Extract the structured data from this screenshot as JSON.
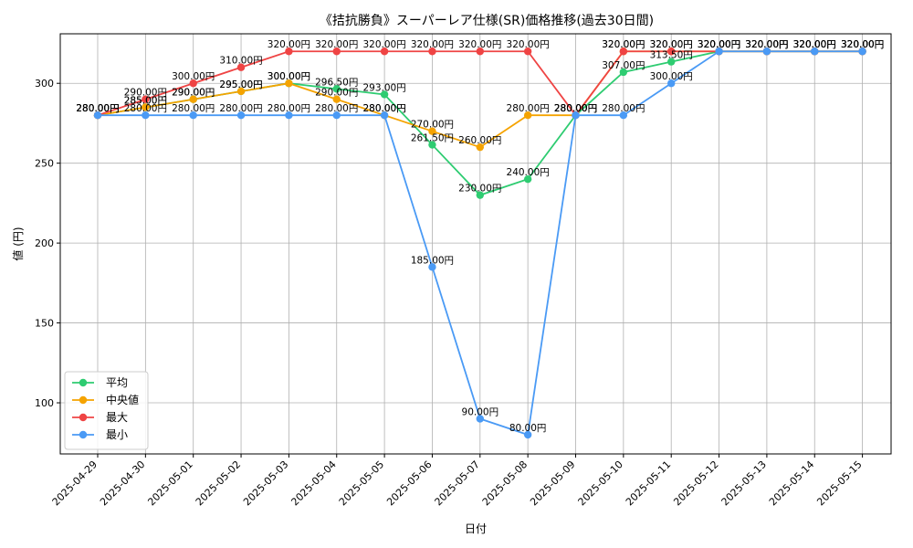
{
  "chart_data": {
    "type": "line",
    "title": "《拮抗勝負》スーパーレア仕様(SR)価格推移(過去30日間)",
    "xlabel": "日付",
    "ylabel": "値 (円)",
    "ylim": [
      68,
      331
    ],
    "yticks": [
      100,
      150,
      200,
      250,
      300
    ],
    "grid": true,
    "legend_position": "lower-left",
    "label_suffix": "円",
    "categories": [
      "2025-04-29",
      "2025-04-30",
      "2025-05-01",
      "2025-05-02",
      "2025-05-03",
      "2025-05-04",
      "2025-05-05",
      "2025-05-06",
      "2025-05-07",
      "2025-05-08",
      "2025-05-09",
      "2025-05-10",
      "2025-05-11",
      "2025-05-12",
      "2025-05-13",
      "2025-05-14",
      "2025-05-15"
    ],
    "series": [
      {
        "name": "平均",
        "color": "#2ecc71",
        "values": [
          280,
          285,
          290,
          295,
          300,
          296.5,
          293,
          261.5,
          230,
          240,
          280,
          307,
          313.5,
          320,
          320,
          320,
          320
        ]
      },
      {
        "name": "中央値",
        "color": "#f5a300",
        "values": [
          280,
          285,
          290,
          295,
          300,
          290,
          280,
          270,
          260,
          280,
          280,
          320,
          320,
          320,
          320,
          320,
          320
        ]
      },
      {
        "name": "最大",
        "color": "#ef4444",
        "values": [
          280,
          290,
          300,
          310,
          320,
          320,
          320,
          320,
          320,
          320,
          280,
          320,
          320,
          320,
          320,
          320,
          320
        ]
      },
      {
        "name": "最小",
        "color": "#4a9af5",
        "values": [
          280,
          280,
          280,
          280,
          280,
          280,
          280,
          185,
          90,
          80,
          280,
          280,
          300,
          320,
          320,
          320,
          320
        ]
      }
    ]
  }
}
